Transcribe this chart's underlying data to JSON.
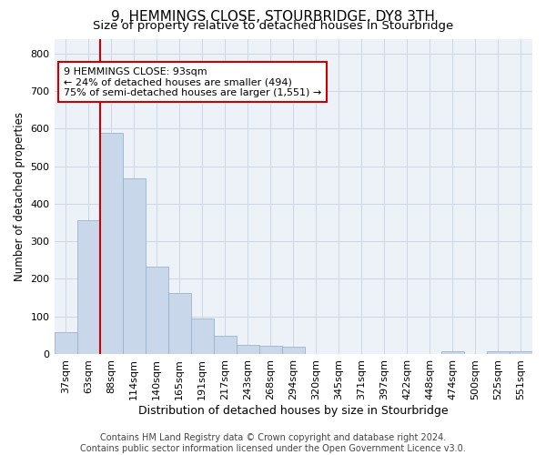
{
  "title": "9, HEMMINGS CLOSE, STOURBRIDGE, DY8 3TH",
  "subtitle": "Size of property relative to detached houses in Stourbridge",
  "xlabel": "Distribution of detached houses by size in Stourbridge",
  "ylabel": "Number of detached properties",
  "footer_line1": "Contains HM Land Registry data © Crown copyright and database right 2024.",
  "footer_line2": "Contains public sector information licensed under the Open Government Licence v3.0.",
  "bar_labels": [
    "37sqm",
    "63sqm",
    "88sqm",
    "114sqm",
    "140sqm",
    "165sqm",
    "191sqm",
    "217sqm",
    "243sqm",
    "268sqm",
    "294sqm",
    "320sqm",
    "345sqm",
    "371sqm",
    "397sqm",
    "422sqm",
    "448sqm",
    "474sqm",
    "500sqm",
    "525sqm",
    "551sqm"
  ],
  "bar_values": [
    58,
    357,
    590,
    468,
    232,
    162,
    95,
    48,
    25,
    22,
    20,
    0,
    0,
    0,
    0,
    0,
    0,
    8,
    0,
    8,
    8
  ],
  "bar_color": "#c8d8ea",
  "bar_edge_color": "#9ab4cc",
  "property_line_color": "#cc0000",
  "annotation_text": "9 HEMMINGS CLOSE: 93sqm\n← 24% of detached houses are smaller (494)\n75% of semi-detached houses are larger (1,551) →",
  "annotation_box_color": "#cc0000",
  "ylim": [
    0,
    840
  ],
  "yticks": [
    0,
    100,
    200,
    300,
    400,
    500,
    600,
    700,
    800
  ],
  "grid_color": "#ccd8e4",
  "background_color": "#edf2f8",
  "title_fontsize": 11,
  "subtitle_fontsize": 9.5,
  "xlabel_fontsize": 9,
  "ylabel_fontsize": 8.5,
  "tick_fontsize": 8,
  "annotation_fontsize": 8,
  "footer_fontsize": 7
}
